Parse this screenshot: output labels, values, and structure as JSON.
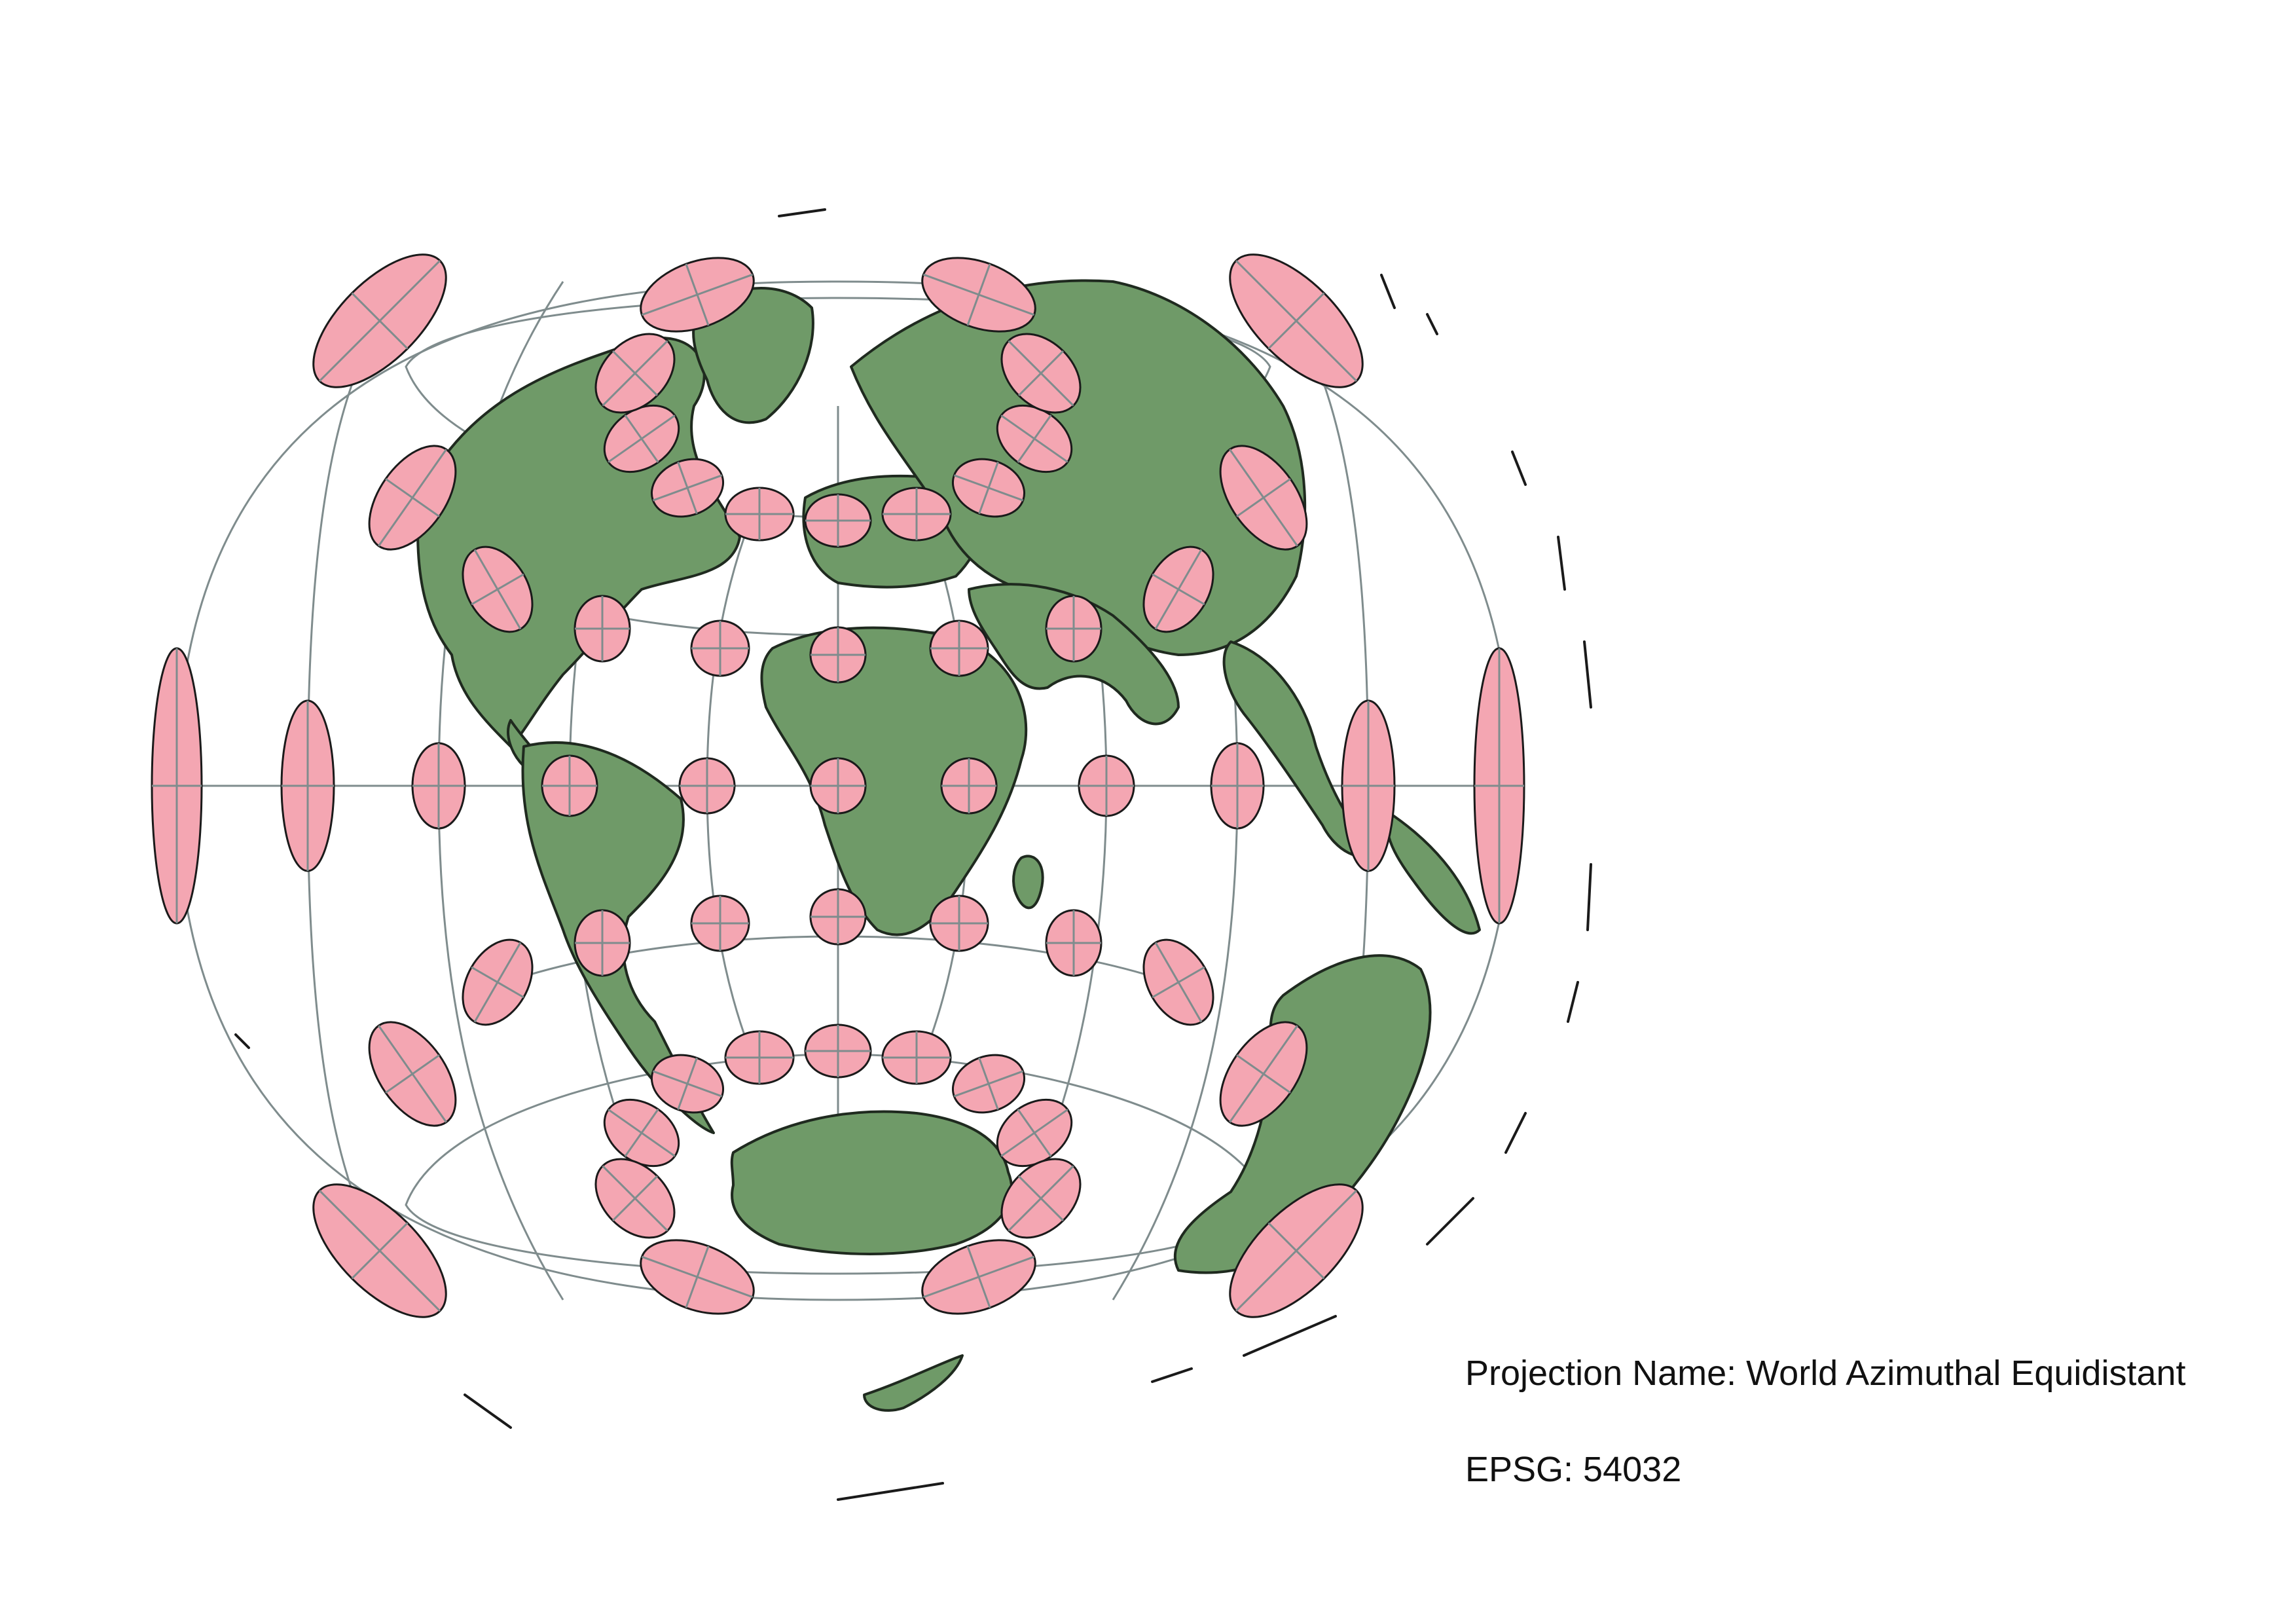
{
  "projection": {
    "name_text": "Projection Name: World Azimuthal Equidistant",
    "epsg_text": "EPSG: 54032"
  },
  "colors": {
    "land": "#6f9a68",
    "land_stroke": "#1f2a1f",
    "graticule": "#7f8c8d",
    "ellipse_fill": "#f4a6b2",
    "ellipse_stroke": "#1a1a1a"
  },
  "indicatrix": {
    "meridians_deg": [
      -180,
      -150,
      -120,
      -90,
      -60,
      -30,
      0,
      30,
      60,
      90,
      120,
      150,
      180
    ],
    "parallels_deg": [
      -60,
      -30,
      0,
      30,
      60
    ]
  }
}
